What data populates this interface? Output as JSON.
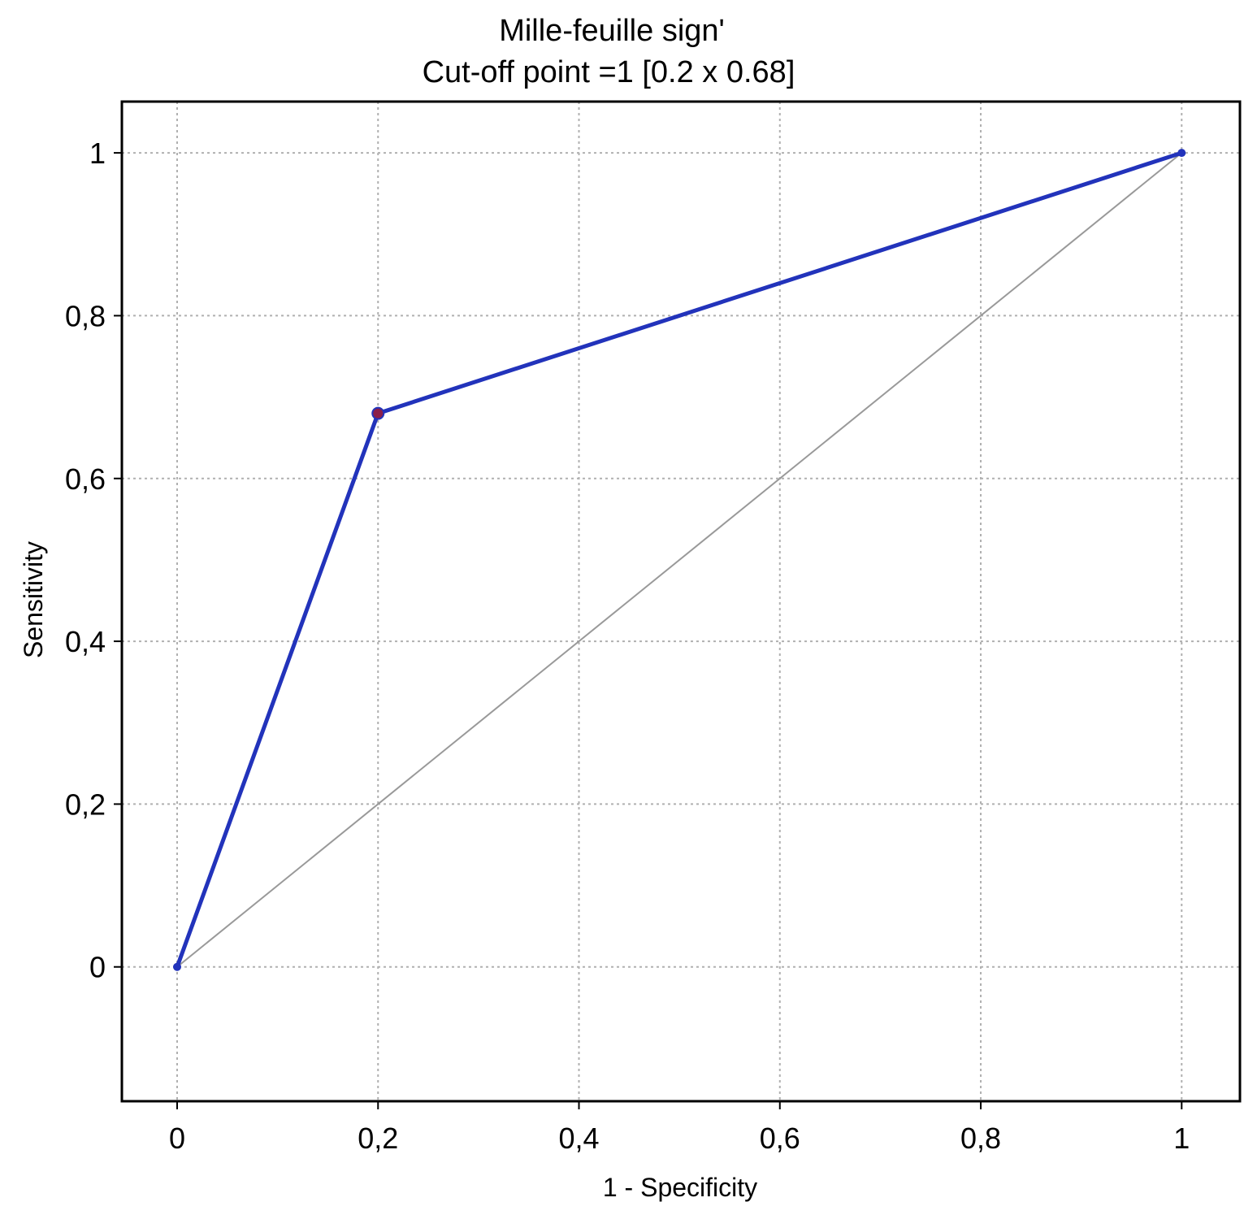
{
  "chart_data": {
    "type": "line",
    "title": "Mille-feuille sign'",
    "subtitle": "Cut-off point =1 [0.2 x 0.68]",
    "xlabel": "1 - Specificity",
    "ylabel": "Sensitivity",
    "xlim": [
      -0.055,
      1.058
    ],
    "ylim": [
      -0.165,
      1.063
    ],
    "x_ticks": [
      0,
      0.2,
      0.4,
      0.6,
      0.8,
      1
    ],
    "x_tick_labels": [
      "0",
      "0,2",
      "0,4",
      "0,6",
      "0,8",
      "1"
    ],
    "y_ticks": [
      0,
      0.2,
      0.4,
      0.6,
      0.8,
      1
    ],
    "y_tick_labels": [
      "0",
      "0,2",
      "0,4",
      "0,6",
      "0,8",
      "1"
    ],
    "grid": true,
    "legend": "none",
    "series": [
      {
        "x": [
          0,
          0.2,
          1
        ],
        "y": [
          0,
          0.68,
          1
        ],
        "color": "#2233bb",
        "style": "solid"
      },
      {
        "x": [
          0,
          1
        ],
        "y": [
          0,
          1
        ],
        "color": "#999999",
        "style": "reference"
      }
    ],
    "highlight_point": {
      "x": 0.2,
      "y": 0.68,
      "color": "#8b1e4a"
    }
  }
}
